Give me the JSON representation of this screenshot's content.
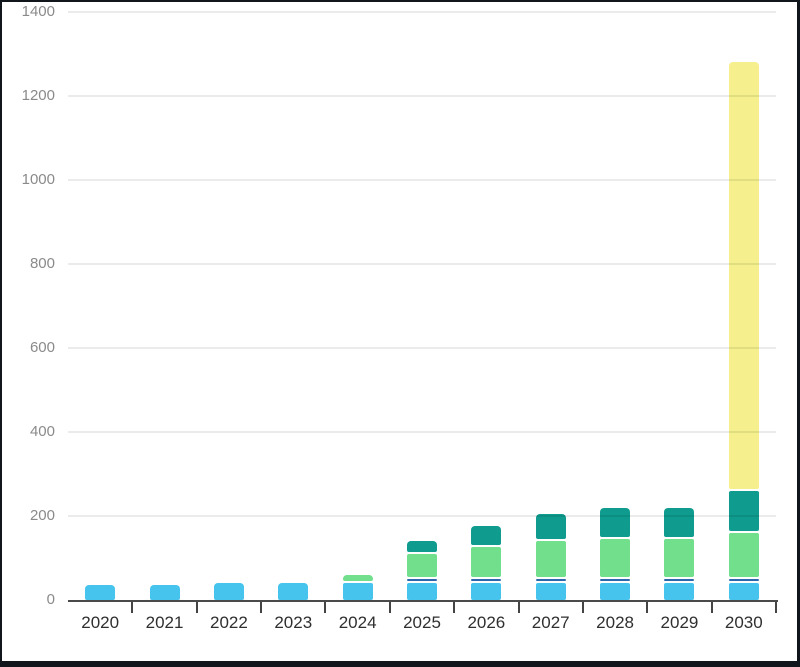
{
  "chart_data": {
    "type": "bar",
    "stacked": true,
    "title": "",
    "xlabel": "",
    "ylabel": "",
    "legend": "none",
    "categories": [
      "2020",
      "2021",
      "2022",
      "2023",
      "2024",
      "2025",
      "2026",
      "2027",
      "2028",
      "2029",
      "2030"
    ],
    "series": [
      {
        "name": "sky-blue-segment",
        "color": "#47c4ee",
        "values": [
          40,
          40,
          45,
          45,
          45,
          45,
          45,
          45,
          45,
          45,
          45
        ]
      },
      {
        "name": "dark-blue-segment",
        "color": "#2e68ac",
        "values": [
          0,
          0,
          0,
          0,
          0,
          10,
          10,
          10,
          10,
          10,
          10
        ]
      },
      {
        "name": "green-segment",
        "color": "#71df8c",
        "values": [
          0,
          0,
          0,
          0,
          20,
          60,
          75,
          90,
          95,
          95,
          110
        ]
      },
      {
        "name": "teal-segment",
        "color": "#0f9b8e",
        "values": [
          0,
          0,
          0,
          0,
          0,
          30,
          50,
          65,
          75,
          75,
          100
        ]
      },
      {
        "name": "yellow-segment",
        "color": "#f5f08d",
        "values": [
          0,
          0,
          0,
          0,
          0,
          0,
          0,
          0,
          0,
          0,
          1020
        ]
      }
    ],
    "stack_totals": [
      40,
      40,
      45,
      45,
      65,
      145,
      180,
      210,
      225,
      225,
      1285
    ],
    "y_axis": {
      "min": 0,
      "max": 1400,
      "tick_step": 200,
      "ticks": [
        0,
        200,
        400,
        600,
        800,
        1000,
        1200,
        1400
      ],
      "grid": true
    },
    "x_axis": {
      "tick_marks": "category-boundaries"
    }
  },
  "colors": {
    "background": "#ffffff",
    "frame_border": "#11161c",
    "gridline": "rgba(0,0,0,0.08)",
    "axis_line": "#4a4a4a",
    "y_label": "#8a8a8a",
    "x_label": "#2f2f2f",
    "segment_gap": "#ffffff"
  }
}
